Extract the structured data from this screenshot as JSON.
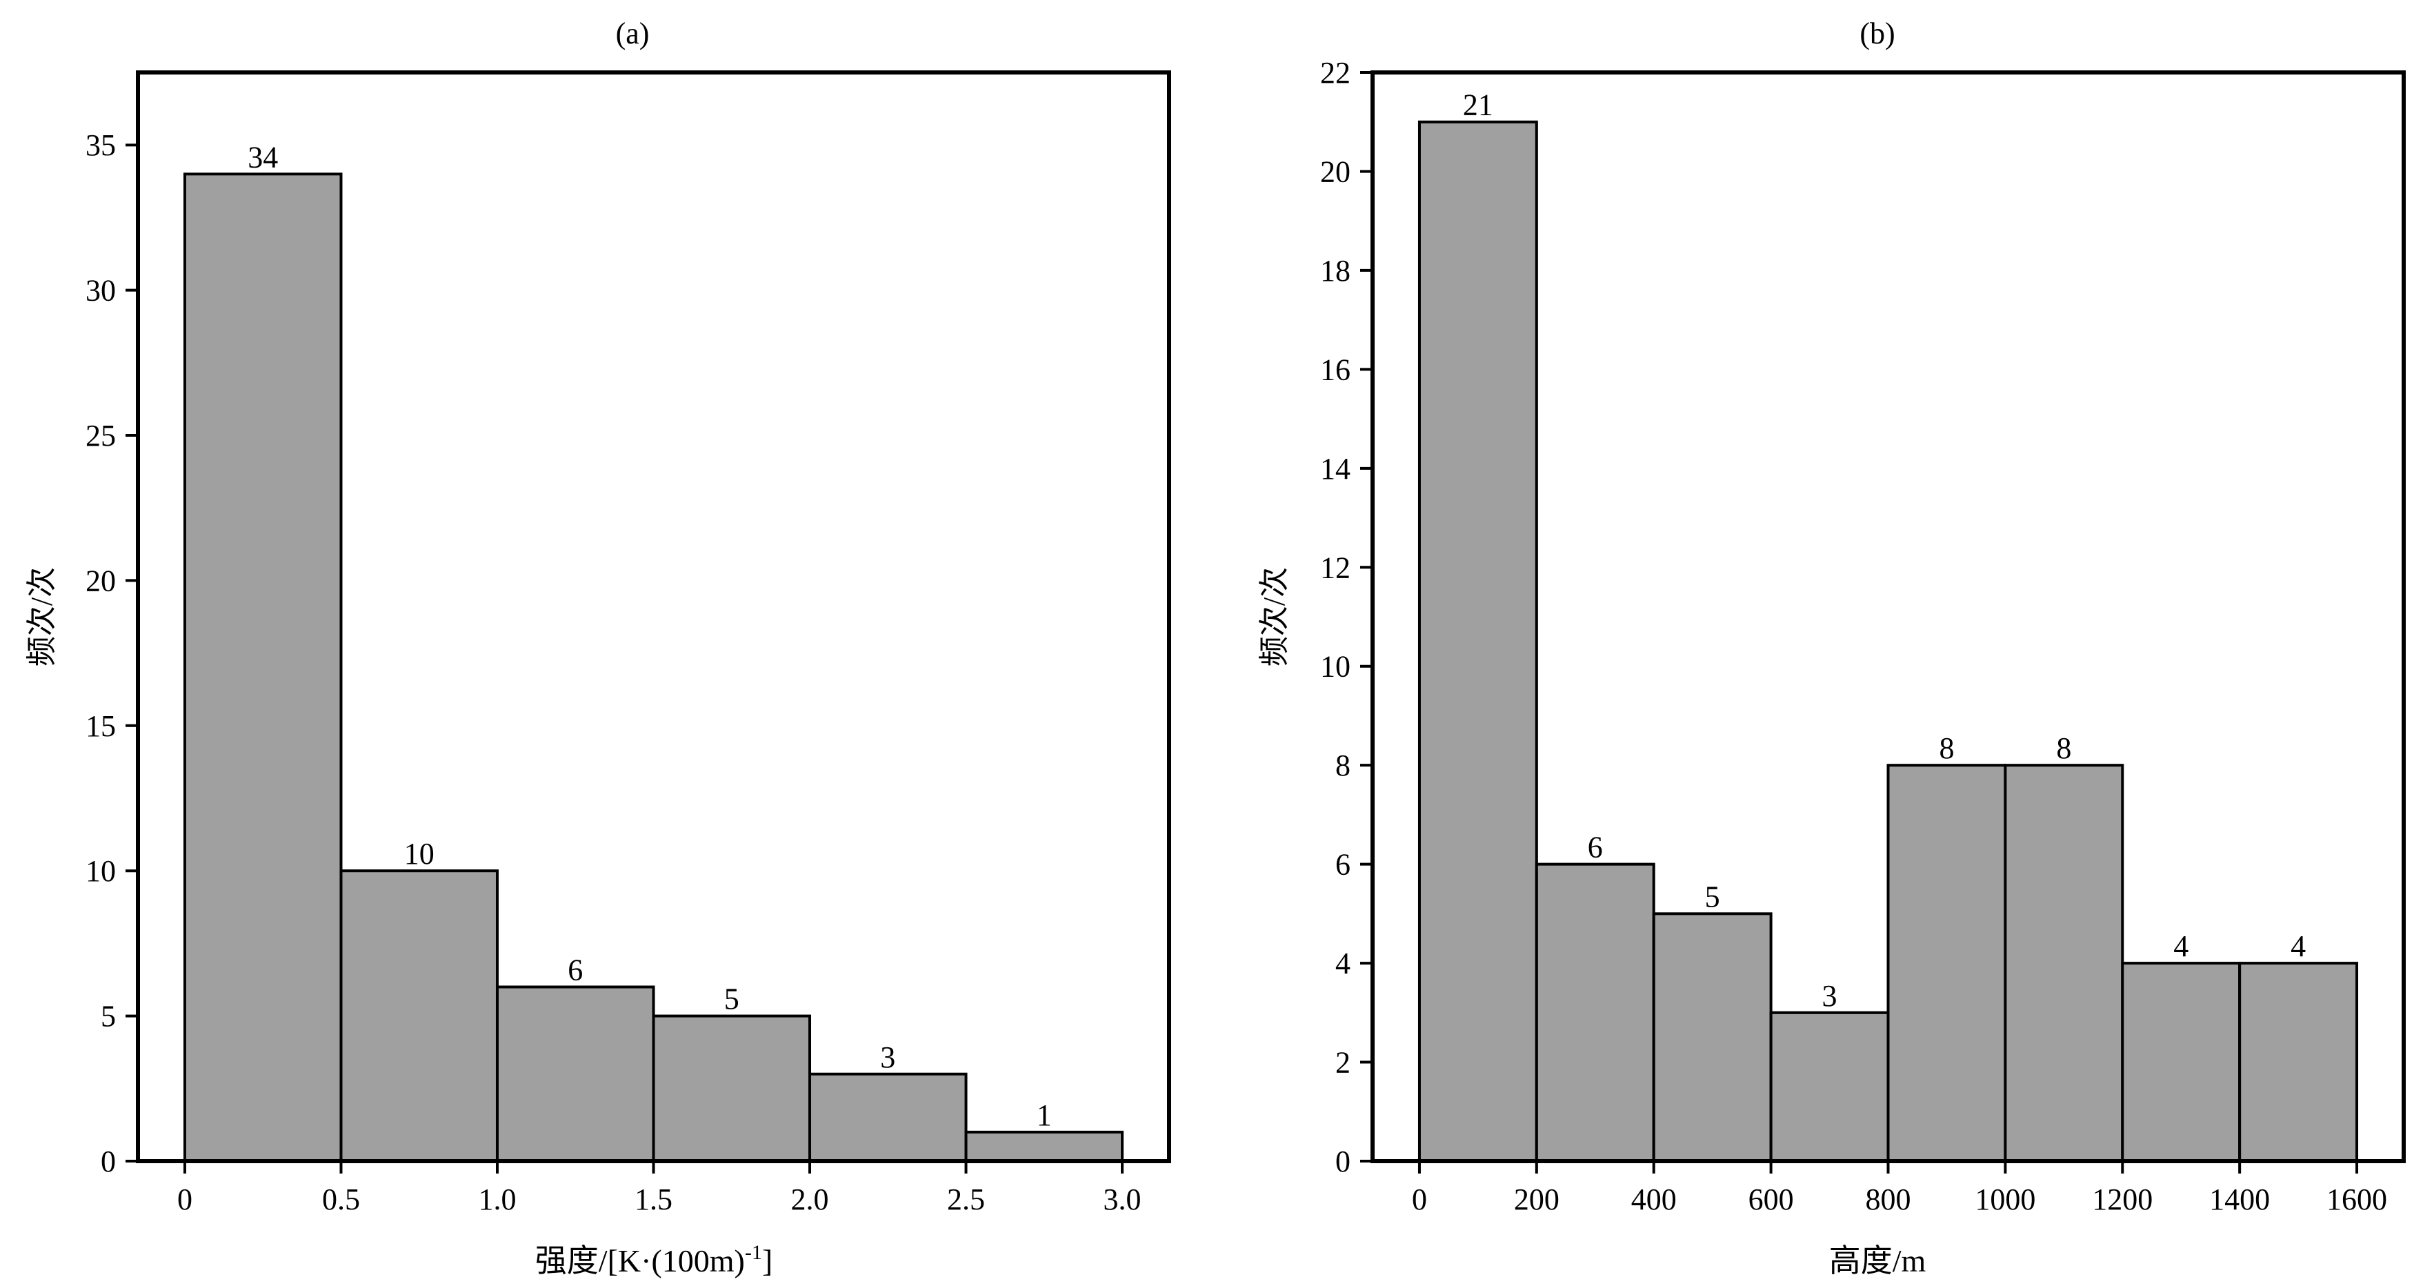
{
  "chart_data": [
    {
      "type": "bar",
      "histogram": true,
      "title": "(a)",
      "xlabel": "强度/[K·(100m)-1]",
      "xlabel_parts": {
        "main": "强度/[K·(100m)",
        "sup": "-1",
        "tail": "]"
      },
      "ylabel": "频次/次",
      "bin_edges": [
        0,
        0.5,
        1.0,
        1.5,
        2.0,
        2.5,
        3.0
      ],
      "values": [
        34,
        10,
        6,
        5,
        3,
        1
      ],
      "data_labels": [
        "34",
        "10",
        "6",
        "5",
        "3",
        "1"
      ],
      "xticks": [
        0,
        0.5,
        1.0,
        1.5,
        2.0,
        2.5,
        3.0
      ],
      "xtick_labels": [
        "0",
        "0.5",
        "1.0",
        "1.5",
        "2.0",
        "2.5",
        "3.0"
      ],
      "yticks": [
        0,
        5,
        10,
        15,
        20,
        25,
        30,
        35
      ],
      "ytick_labels": [
        "0",
        "5",
        "10",
        "15",
        "20",
        "25",
        "30",
        "35"
      ],
      "xlim": [
        -0.15,
        3.15
      ],
      "ylim": [
        0,
        37.5
      ],
      "bar_color": "#a0a0a0",
      "grid": false,
      "legend": "none"
    },
    {
      "type": "bar",
      "histogram": true,
      "title": "(b)",
      "xlabel": "高度/m",
      "ylabel": "频次/次",
      "bin_edges": [
        0,
        200,
        400,
        600,
        800,
        1000,
        1200,
        1400,
        1600
      ],
      "values": [
        21,
        6,
        5,
        3,
        8,
        8,
        4,
        4
      ],
      "data_labels": [
        "21",
        "6",
        "5",
        "3",
        "8",
        "8",
        "4",
        "4"
      ],
      "xticks": [
        0,
        200,
        400,
        600,
        800,
        1000,
        1200,
        1400,
        1600
      ],
      "xtick_labels": [
        "0",
        "200",
        "400",
        "600",
        "800",
        "1000",
        "1200",
        "1400",
        "1600"
      ],
      "yticks": [
        0,
        2,
        4,
        6,
        8,
        10,
        12,
        14,
        16,
        18,
        20,
        22
      ],
      "ytick_labels": [
        "0",
        "2",
        "4",
        "6",
        "8",
        "10",
        "12",
        "14",
        "16",
        "18",
        "20",
        "22"
      ],
      "xlim": [
        -80,
        1680
      ],
      "ylim": [
        0,
        22
      ],
      "bar_color": "#a0a0a0",
      "grid": false,
      "legend": "none"
    }
  ]
}
